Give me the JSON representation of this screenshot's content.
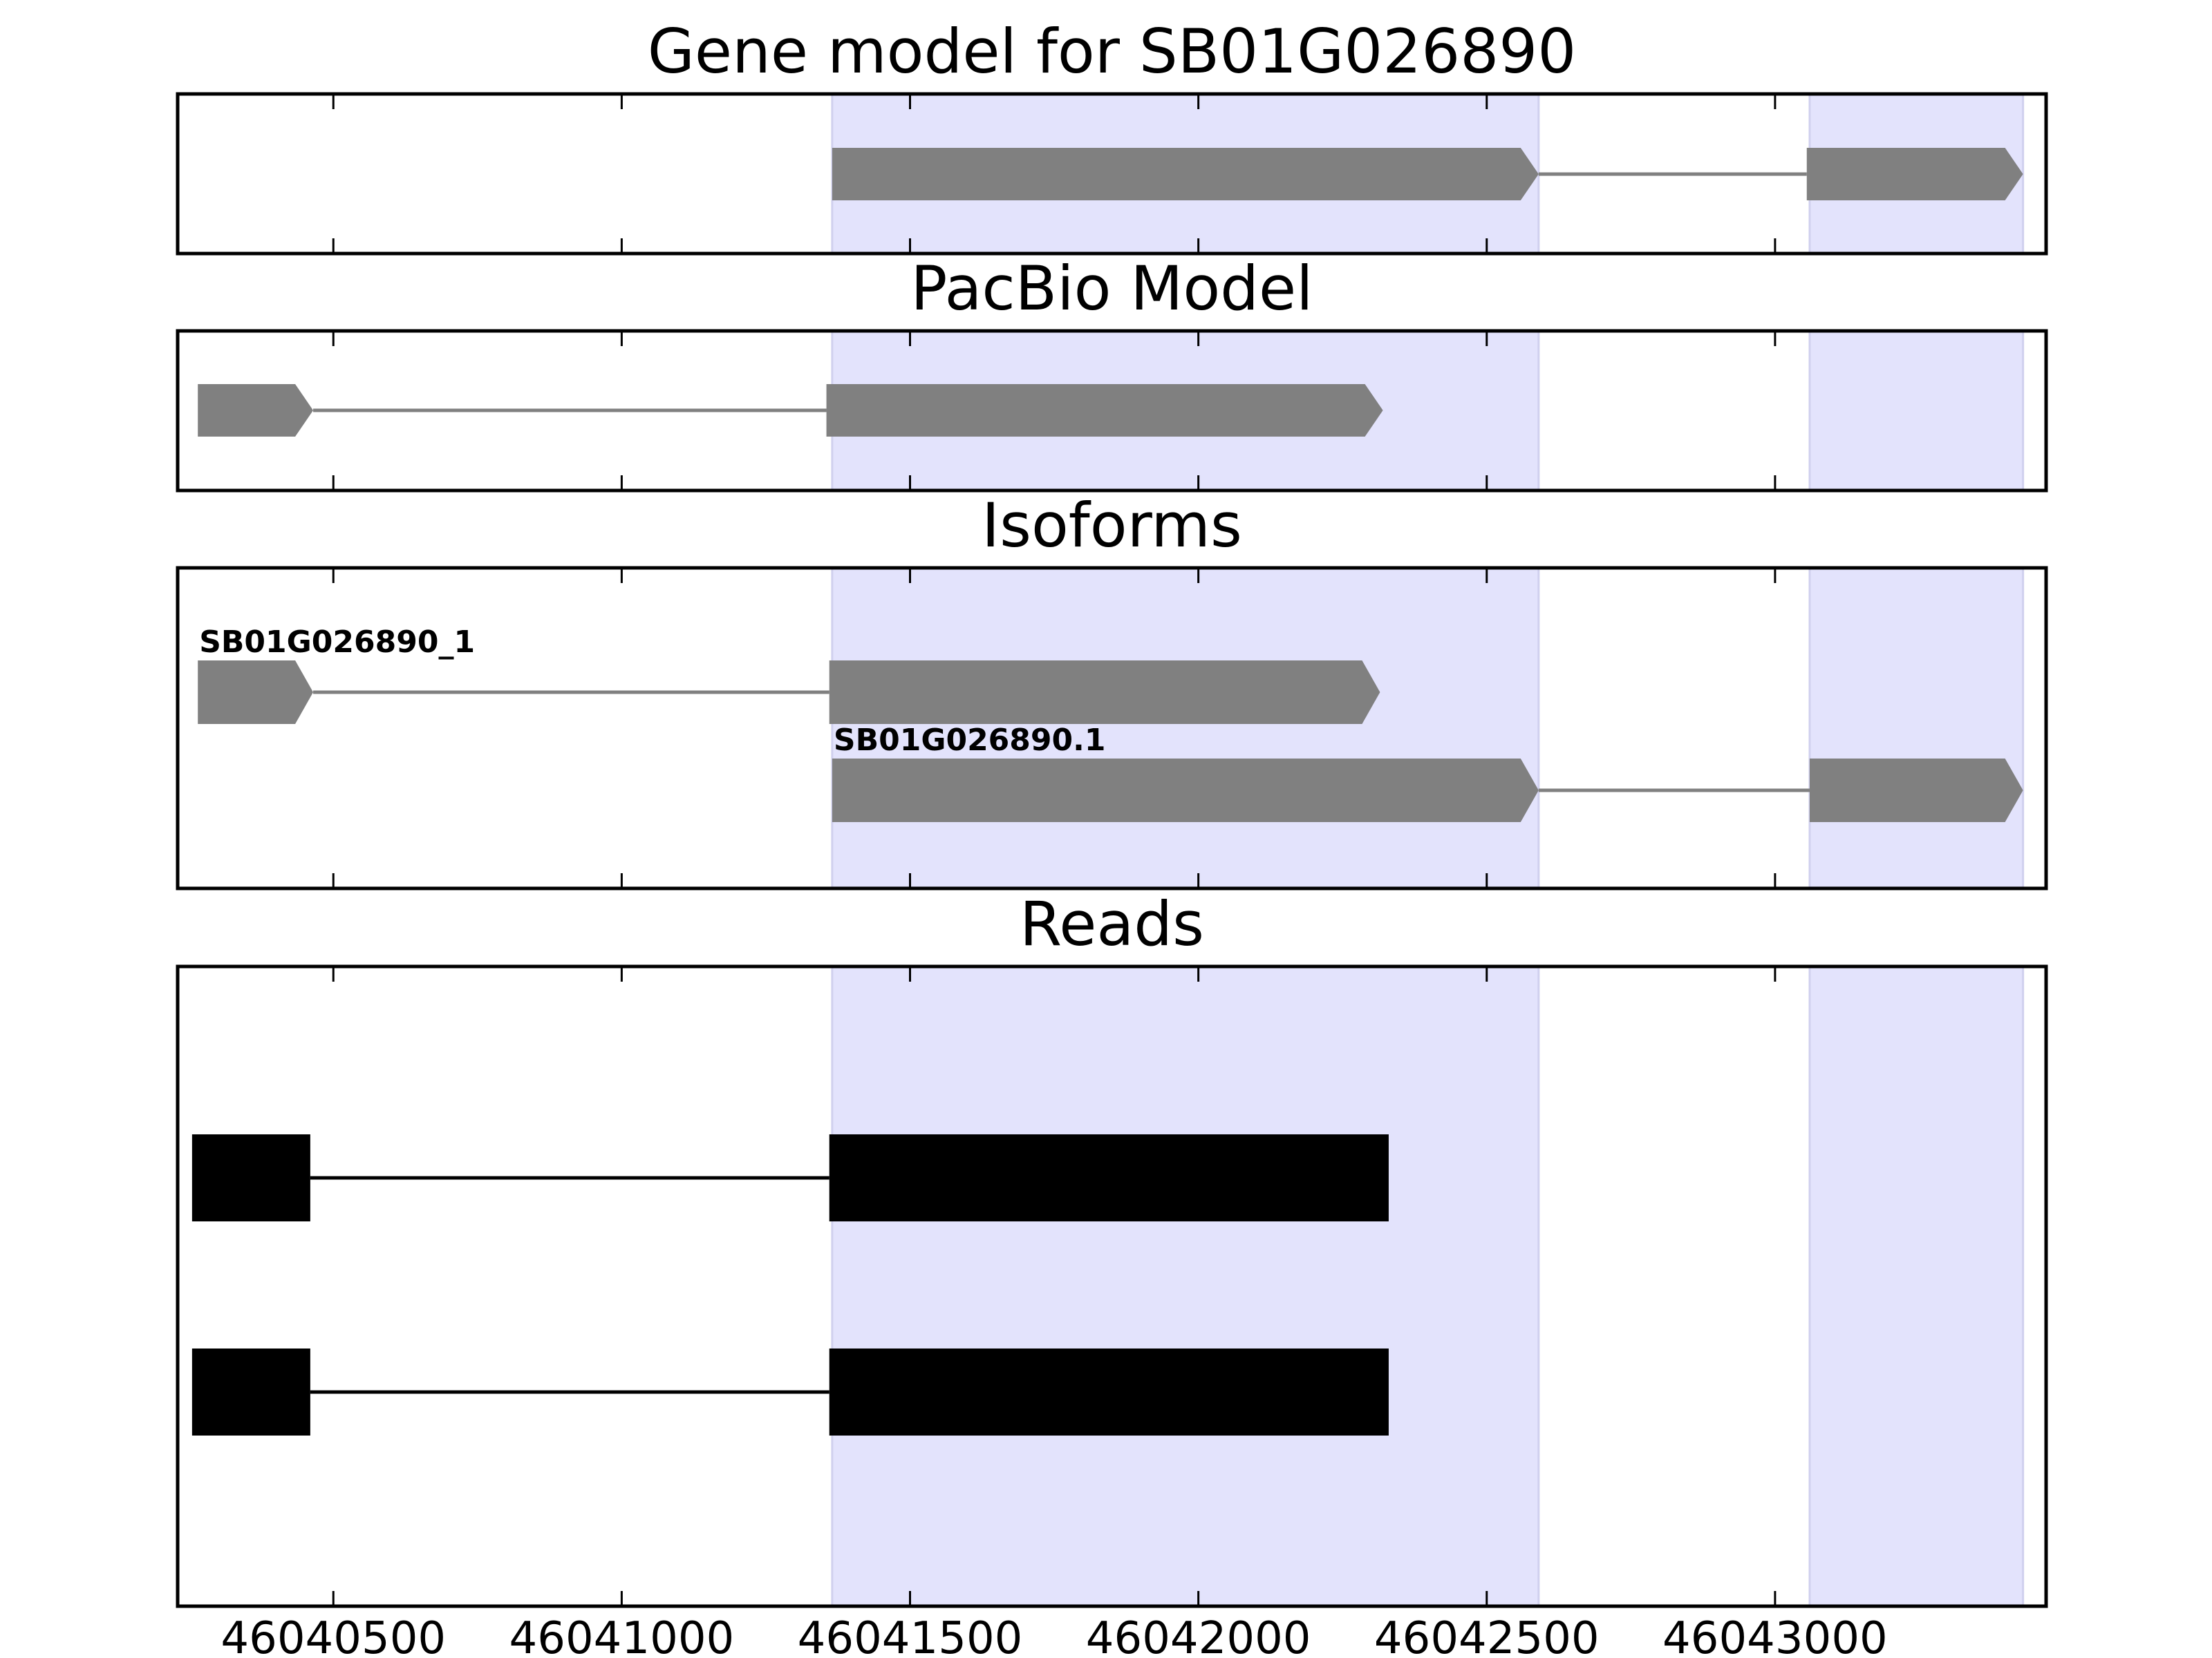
{
  "chart_data": {
    "type": "gene-track",
    "x_ticks": [
      46040500,
      46041000,
      46041500,
      46042000,
      46042500,
      46043000
    ],
    "xlim": [
      46040230,
      46043470
    ],
    "highlight_regions": [
      [
        46041365,
        46042590
      ],
      [
        46043060,
        46043430
      ]
    ],
    "colors": {
      "highlight": "#e3e3fc",
      "feature": "#808080",
      "read": "#000000"
    },
    "panels": [
      {
        "title": "Gene model for SB01G026890",
        "tracks": [
          {
            "label": "",
            "exons": [
              [
                46041365,
                46042590
              ],
              [
                46043055,
                46043430
              ]
            ]
          }
        ]
      },
      {
        "title": "PacBio Model",
        "tracks": [
          {
            "label": "",
            "exons": [
              [
                46040265,
                46040465
              ],
              [
                46041355,
                46042320
              ]
            ]
          }
        ]
      },
      {
        "title": "Isoforms",
        "tracks": [
          {
            "label": "SB01G026890_1",
            "exons": [
              [
                46040265,
                46040465
              ],
              [
                46041360,
                46042315
              ]
            ]
          },
          {
            "label": "SB01G026890.1",
            "exons": [
              [
                46041365,
                46042590
              ],
              [
                46043060,
                46043430
              ]
            ]
          }
        ]
      },
      {
        "title": "Reads",
        "tracks": [
          {
            "label": "",
            "exons": [
              [
                46040255,
                46040460
              ],
              [
                46041360,
                46042330
              ]
            ]
          },
          {
            "label": "",
            "exons": [
              [
                46040255,
                46040460
              ],
              [
                46041360,
                46042330
              ]
            ]
          }
        ]
      }
    ]
  }
}
